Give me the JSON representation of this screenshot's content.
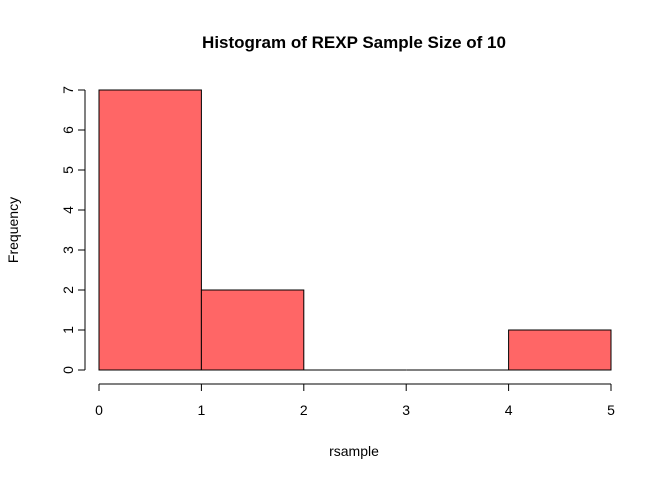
{
  "chart_data": {
    "type": "bar",
    "title": "Histogram of REXP Sample Size of 10",
    "xlabel": "rsample",
    "ylabel": "Frequency",
    "bins": [
      {
        "from": 0,
        "to": 1,
        "count": 7
      },
      {
        "from": 1,
        "to": 2,
        "count": 2
      },
      {
        "from": 2,
        "to": 3,
        "count": 0
      },
      {
        "from": 3,
        "to": 4,
        "count": 0
      },
      {
        "from": 4,
        "to": 5,
        "count": 1
      }
    ],
    "xlim": [
      0,
      5
    ],
    "ylim": [
      0,
      7
    ],
    "x_ticks": [
      "0",
      "1",
      "2",
      "3",
      "4",
      "5"
    ],
    "y_ticks": [
      "0",
      "1",
      "2",
      "3",
      "4",
      "5",
      "6",
      "7"
    ],
    "bar_color": "#FF6666",
    "grid": false
  }
}
